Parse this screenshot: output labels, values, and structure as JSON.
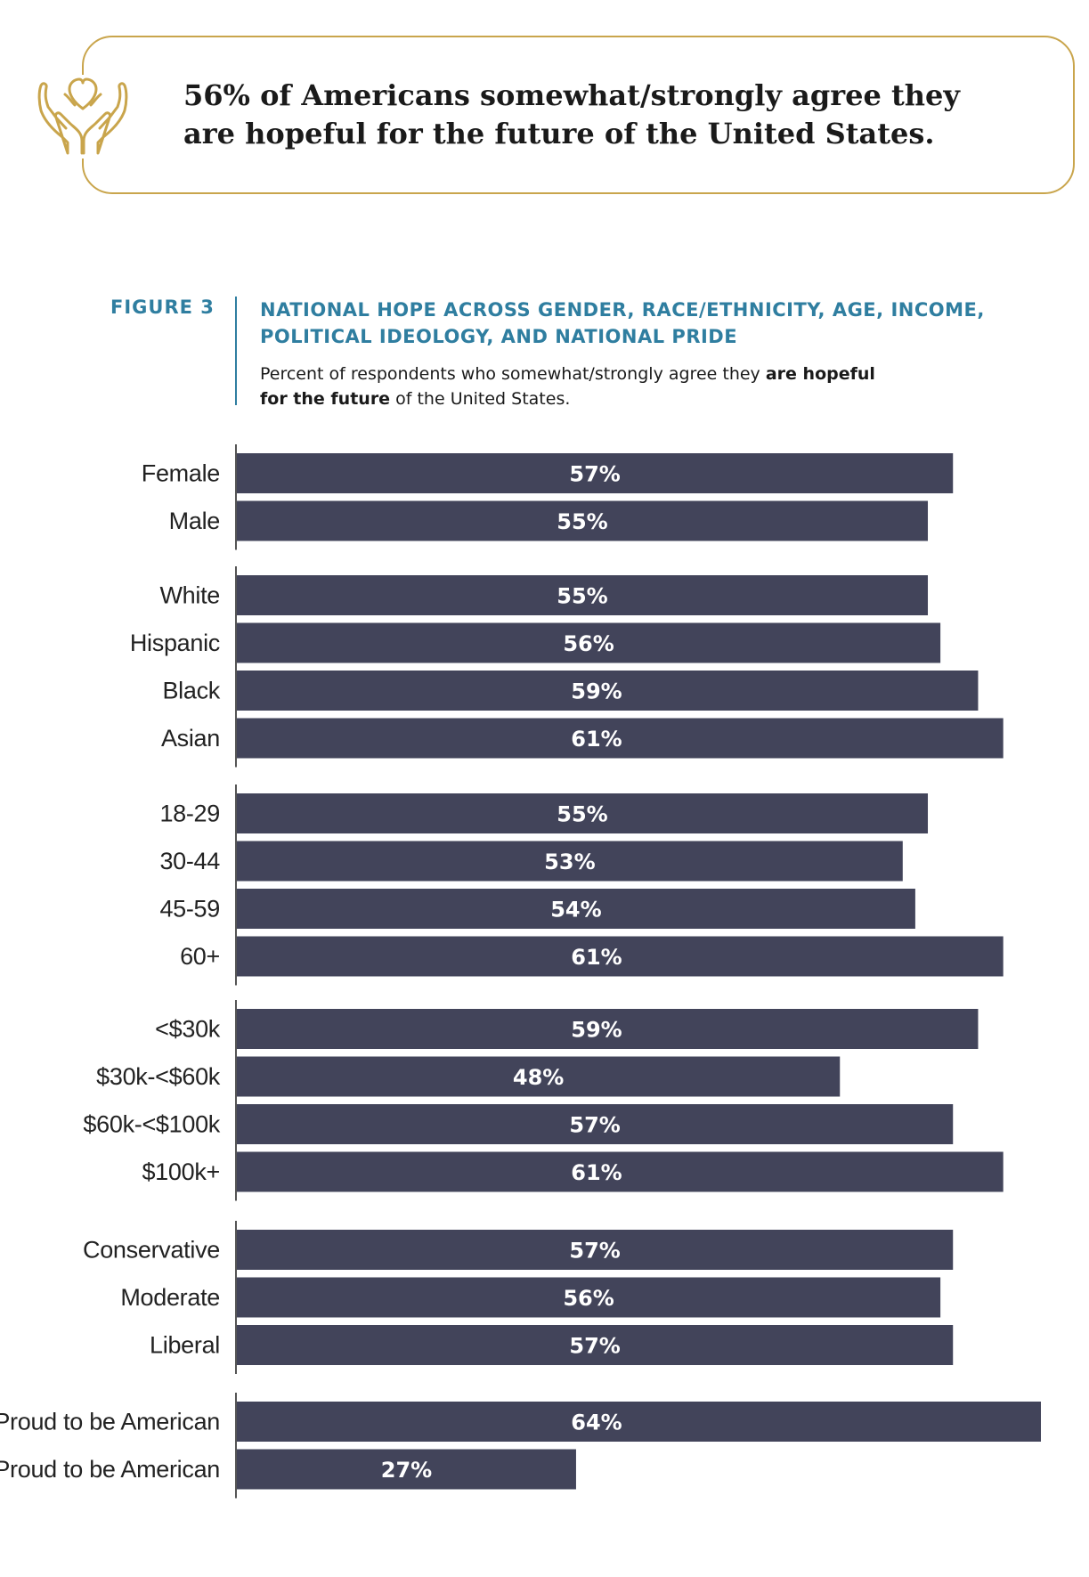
{
  "callout": {
    "text": "56% of Americans somewhat/strongly agree they are hopeful for the future of the United States.",
    "icon": "hands-heart-icon",
    "border_color": "#c9a54c"
  },
  "figure": {
    "number": "FIGURE 3",
    "title": "NATIONAL HOPE ACROSS GENDER, RACE/ETHNICITY, AGE, INCOME, POLITICAL IDEOLOGY, AND NATIONAL PRIDE",
    "subtitle_pre": "Percent of respondents who somewhat/strongly agree they ",
    "subtitle_bold_1": "are hopeful",
    "subtitle_bold_2": "for the future",
    "subtitle_post": " of the United States.",
    "accent_color": "#2f7ea0"
  },
  "chart_data": {
    "type": "bar",
    "orientation": "horizontal",
    "xlim": [
      0,
      64
    ],
    "bar_color": "#42445a",
    "groups": [
      {
        "categories": [
          "Female",
          "Male"
        ],
        "values": [
          57,
          55
        ],
        "labels": [
          "57%",
          "55%"
        ]
      },
      {
        "categories": [
          "White",
          "Hispanic",
          "Black",
          "Asian"
        ],
        "values": [
          55,
          56,
          59,
          61
        ],
        "labels": [
          "55%",
          "56%",
          "59%",
          "61%"
        ]
      },
      {
        "categories": [
          "18-29",
          "30-44",
          "45-59",
          "60+"
        ],
        "values": [
          55,
          53,
          54,
          61
        ],
        "labels": [
          "55%",
          "53%",
          "54%",
          "61%"
        ]
      },
      {
        "categories": [
          "<$30k",
          "$30k-<$60k",
          "$60k-<$100k",
          "$100k+"
        ],
        "values": [
          59,
          48,
          57,
          61
        ],
        "labels": [
          "59%",
          "48%",
          "57%",
          "61%"
        ]
      },
      {
        "categories": [
          "Conservative",
          "Moderate",
          "Liberal"
        ],
        "values": [
          57,
          56,
          57
        ],
        "labels": [
          "57%",
          "56%",
          "57%"
        ]
      },
      {
        "categories": [
          "Proud to be American",
          "Not Proud to be American"
        ],
        "values": [
          64,
          27
        ],
        "labels": [
          "64%",
          "27%"
        ]
      }
    ]
  }
}
